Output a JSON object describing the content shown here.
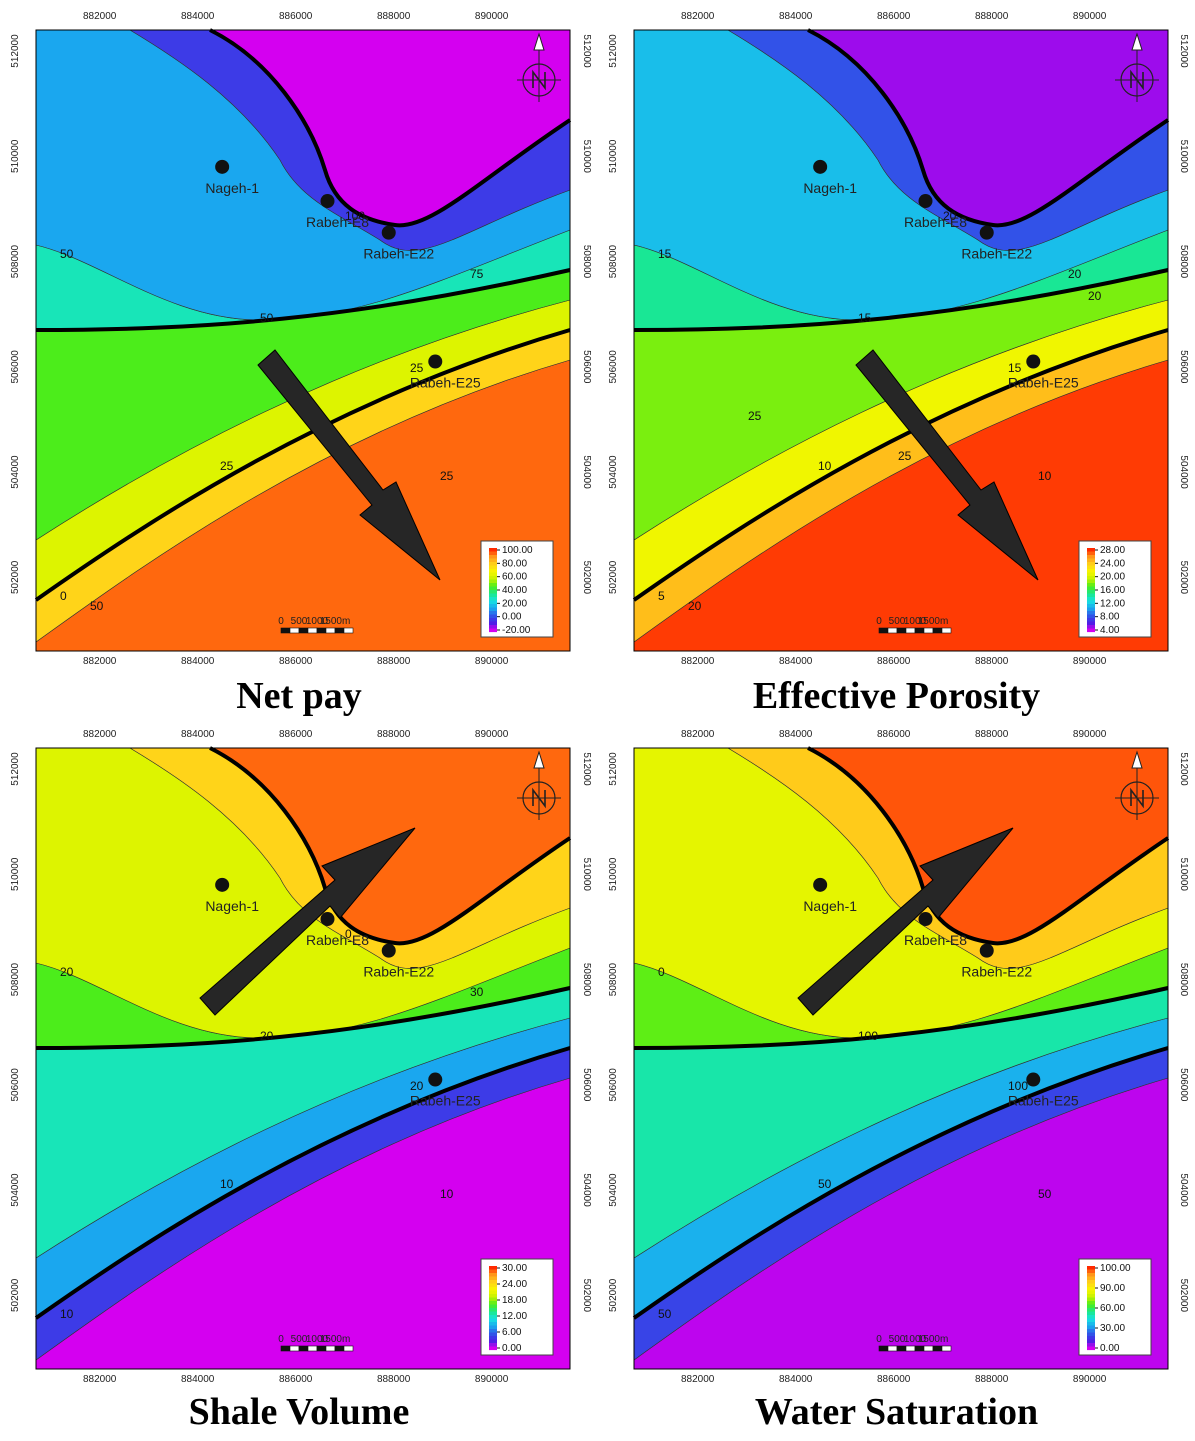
{
  "x_ticks": [
    "882000",
    "884000",
    "886000",
    "888000",
    "890000"
  ],
  "y_ticks": [
    "512000",
    "510000",
    "508000",
    "506000",
    "504000",
    "502000"
  ],
  "scale_bar": {
    "labels": [
      "0",
      "500",
      "1000",
      "1500m"
    ]
  },
  "wells": [
    {
      "name": "Nageh-1",
      "x": 884500,
      "y": 509800
    },
    {
      "name": "Rabeh-E8",
      "x": 886650,
      "y": 509150
    },
    {
      "name": "Rabeh-E22",
      "x": 887900,
      "y": 508550
    },
    {
      "name": "Rabeh-E25",
      "x": 888850,
      "y": 506100
    }
  ],
  "colors": {
    "ramp": [
      "#d400f0",
      "#4a1fe6",
      "#2f58e8",
      "#1aa8ef",
      "#17e2e2",
      "#19e88a",
      "#4ded18",
      "#c7f200",
      "#f7f700",
      "#ffd21a",
      "#ff9a1a",
      "#ff2a00"
    ],
    "contour_major": "#000000",
    "well_dot": "#111111"
  },
  "panels": [
    {
      "id": "net-pay",
      "caption": "Net pay",
      "legend": [
        "100.00",
        "80.00",
        "60.00",
        "40.00",
        "20.00",
        "0.00",
        "-20.00"
      ],
      "contour_labels": [
        "0",
        "25",
        "25",
        "25",
        "50",
        "50",
        "75",
        "100",
        "50"
      ],
      "arrow": "to-southeast"
    },
    {
      "id": "effective-porosity",
      "caption": "Effective Porosity",
      "legend": [
        "28.00",
        "24.00",
        "20.00",
        "16.00",
        "12.00",
        "8.00",
        "4.00"
      ],
      "contour_labels": [
        "5",
        "10",
        "10",
        "15",
        "15",
        "15",
        "20",
        "20",
        "20",
        "20",
        "25",
        "25"
      ],
      "arrow": "to-southeast"
    },
    {
      "id": "shale-volume",
      "caption": "Shale Volume",
      "legend": [
        "30.00",
        "24.00",
        "18.00",
        "12.00",
        "6.00",
        "0.00"
      ],
      "contour_labels": [
        "10",
        "10",
        "10",
        "20",
        "20",
        "20",
        "30",
        "0"
      ],
      "arrow": "to-northeast"
    },
    {
      "id": "water-saturation",
      "caption": "Water Saturation",
      "legend": [
        "100.00",
        "90.00",
        "60.00",
        "30.00",
        "0.00"
      ],
      "contour_labels": [
        "50",
        "50",
        "50",
        "100",
        "100",
        "0"
      ],
      "arrow": "to-northeast"
    }
  ]
}
